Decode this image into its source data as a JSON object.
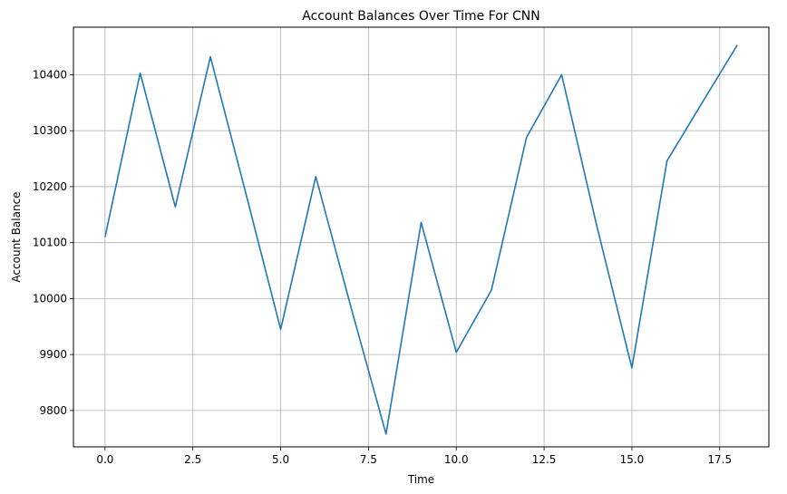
{
  "chart_data": {
    "type": "line",
    "title": "Account Balances Over Time For CNN",
    "xlabel": "Time",
    "ylabel": "Account Balance",
    "xlim": [
      -0.9,
      18.9
    ],
    "ylim": [
      9735,
      10485
    ],
    "grid": true,
    "xticks": [
      0.0,
      2.5,
      5.0,
      7.5,
      10.0,
      12.5,
      15.0,
      17.5
    ],
    "xtick_labels": [
      "0.0",
      "2.5",
      "5.0",
      "7.5",
      "10.0",
      "12.5",
      "15.0",
      "17.5"
    ],
    "yticks": [
      9800,
      9900,
      10000,
      10100,
      10200,
      10300,
      10400
    ],
    "ytick_labels": [
      "9800",
      "9900",
      "10000",
      "10100",
      "10200",
      "10300",
      "10400"
    ],
    "series": [
      {
        "color": "#1f77b4",
        "x": [
          0,
          1,
          2,
          3,
          4,
          5,
          6,
          7,
          8,
          9,
          10,
          11,
          12,
          13,
          14,
          15,
          16,
          17,
          18
        ],
        "y": [
          10110,
          10403,
          10164,
          10432,
          10190,
          9945,
          10218,
          9985,
          9758,
          10136,
          9904,
          10015,
          10288,
          10400,
          10130,
          9876,
          10246,
          10350,
          10453
        ]
      }
    ]
  }
}
